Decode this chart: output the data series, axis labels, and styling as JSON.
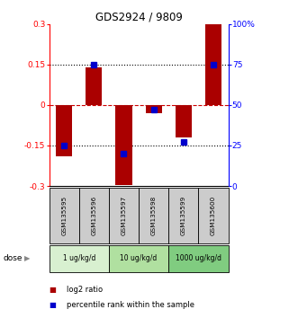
{
  "title": "GDS2924 / 9809",
  "samples": [
    "GSM135595",
    "GSM135596",
    "GSM135597",
    "GSM135598",
    "GSM135599",
    "GSM135600"
  ],
  "log2_ratio": [
    -0.19,
    0.14,
    -0.295,
    -0.03,
    -0.12,
    0.3
  ],
  "percentile_rank": [
    25,
    75,
    20,
    47,
    27,
    75
  ],
  "dose_groups": [
    {
      "label": "1 ug/kg/d",
      "start": 0,
      "end": 1,
      "color": "#d8f0d0"
    },
    {
      "label": "10 ug/kg/d",
      "start": 2,
      "end": 3,
      "color": "#b0e0a0"
    },
    {
      "label": "1000 ug/kg/d",
      "start": 4,
      "end": 5,
      "color": "#80cc80"
    }
  ],
  "ylim": [
    -0.3,
    0.3
  ],
  "yticks_left": [
    -0.3,
    -0.15,
    0,
    0.15,
    0.3
  ],
  "yticks_left_labels": [
    "-0.3",
    "-0.15",
    "0",
    "0.15",
    "0.3"
  ],
  "yticks_right": [
    0,
    25,
    50,
    75,
    100
  ],
  "yticks_right_labels": [
    "0",
    "25",
    "50",
    "75",
    "100%"
  ],
  "bar_color": "#aa0000",
  "dot_color": "#0000cc",
  "sample_box_color": "#cccccc",
  "zero_line_color": "#cc0000",
  "hline_color": "#000000",
  "legend_bar_color": "#aa0000",
  "legend_dot_color": "#0000cc"
}
